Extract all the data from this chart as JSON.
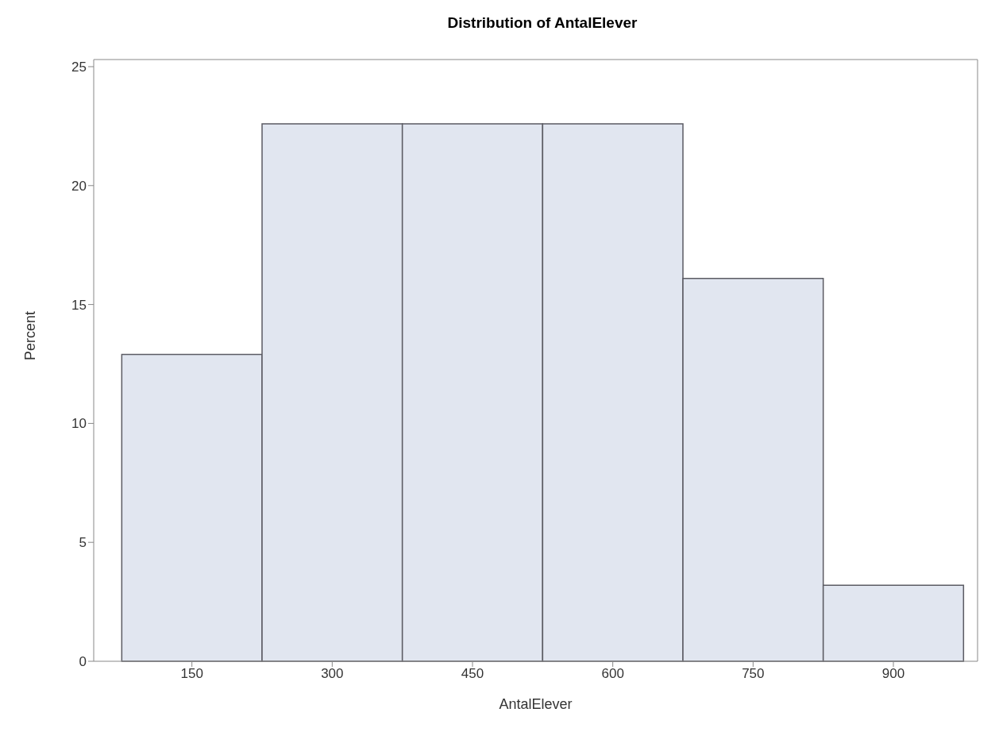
{
  "chart_data": {
    "type": "histogram",
    "title": "Distribution of AntalElever",
    "xlabel": "AntalElever",
    "ylabel": "Percent",
    "bins": [
      75,
      225,
      375,
      525,
      675,
      825,
      975
    ],
    "values": [
      12.9,
      22.6,
      22.6,
      22.6,
      16.1,
      3.2
    ],
    "color": "#e1e6f0",
    "xlim": [
      45,
      990
    ],
    "xticks": [
      150,
      300,
      450,
      600,
      750,
      900
    ],
    "ylim": [
      0,
      25.3
    ],
    "yticks": [
      0,
      5,
      10,
      15,
      20,
      25
    ]
  }
}
